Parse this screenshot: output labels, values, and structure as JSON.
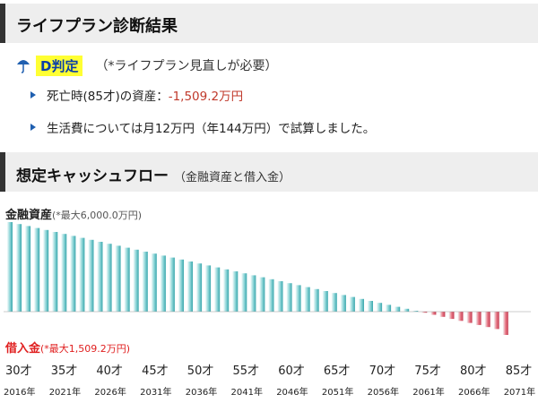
{
  "header": {
    "title": "ライフプラン診断結果"
  },
  "verdict": {
    "badge": "D判定",
    "note": "（*ライフプラン見直しが必要）",
    "icon": "umbrella-icon"
  },
  "bullets": [
    {
      "prefix": "死亡時(85才)の資産：",
      "value": "-1,509.2万円"
    },
    {
      "text": "生活費については月12万円（年144万円）で試算しました。"
    }
  ],
  "section2": {
    "title": "想定キャッシュフロー",
    "subtitle": "（金融資産と借入金）"
  },
  "labels": {
    "asset_main": "金融資産",
    "asset_note": "(*最大6,000.0万円)",
    "debt_main": "借入金",
    "debt_note": "(*最大1,509.2万円)"
  },
  "colors": {
    "asset_bar": "#8fd6d8",
    "asset_bar_edge": "#3aa7ad",
    "debt_bar": "#e87a88",
    "debt_bar_edge": "#c43c52",
    "verdict_badge": "#ffff33"
  },
  "chart_data": {
    "type": "bar",
    "x": [
      30,
      31,
      32,
      33,
      34,
      35,
      36,
      37,
      38,
      39,
      40,
      41,
      42,
      43,
      44,
      45,
      46,
      47,
      48,
      49,
      50,
      51,
      52,
      53,
      54,
      55,
      56,
      57,
      58,
      59,
      60,
      61,
      62,
      63,
      64,
      65,
      66,
      67,
      68,
      69,
      70,
      71,
      72,
      73,
      74,
      75,
      76,
      77,
      78,
      79,
      80,
      81,
      82,
      83,
      84,
      85
    ],
    "series": [
      {
        "values": [
          6000,
          5868,
          5736,
          5604,
          5472,
          5340,
          5208,
          5076,
          4944,
          4812,
          4680,
          4548,
          4416,
          4284,
          4152,
          4020,
          3888,
          3756,
          3624,
          3492,
          3360,
          3228,
          3096,
          2964,
          2832,
          2700,
          2568,
          2436,
          2304,
          2172,
          2040,
          1908,
          1776,
          1644,
          1512,
          1380,
          1248,
          1116,
          984,
          852,
          720,
          588,
          456,
          324,
          192,
          60,
          -72,
          -204,
          -336,
          -468,
          -600,
          -732,
          -864,
          -996,
          -1128,
          -1509.2
        ]
      }
    ],
    "age_ticks": [
      "30才",
      "35才",
      "40才",
      "45才",
      "50才",
      "55才",
      "60才",
      "65才",
      "70才",
      "75才",
      "80才",
      "85才"
    ],
    "year_ticks": [
      "2016年",
      "2021年",
      "2026年",
      "2031年",
      "2036年",
      "2041年",
      "2046年",
      "2051年",
      "2056年",
      "2061年",
      "2066年",
      "2071年"
    ],
    "ylim": [
      -1509.2,
      6000
    ]
  }
}
